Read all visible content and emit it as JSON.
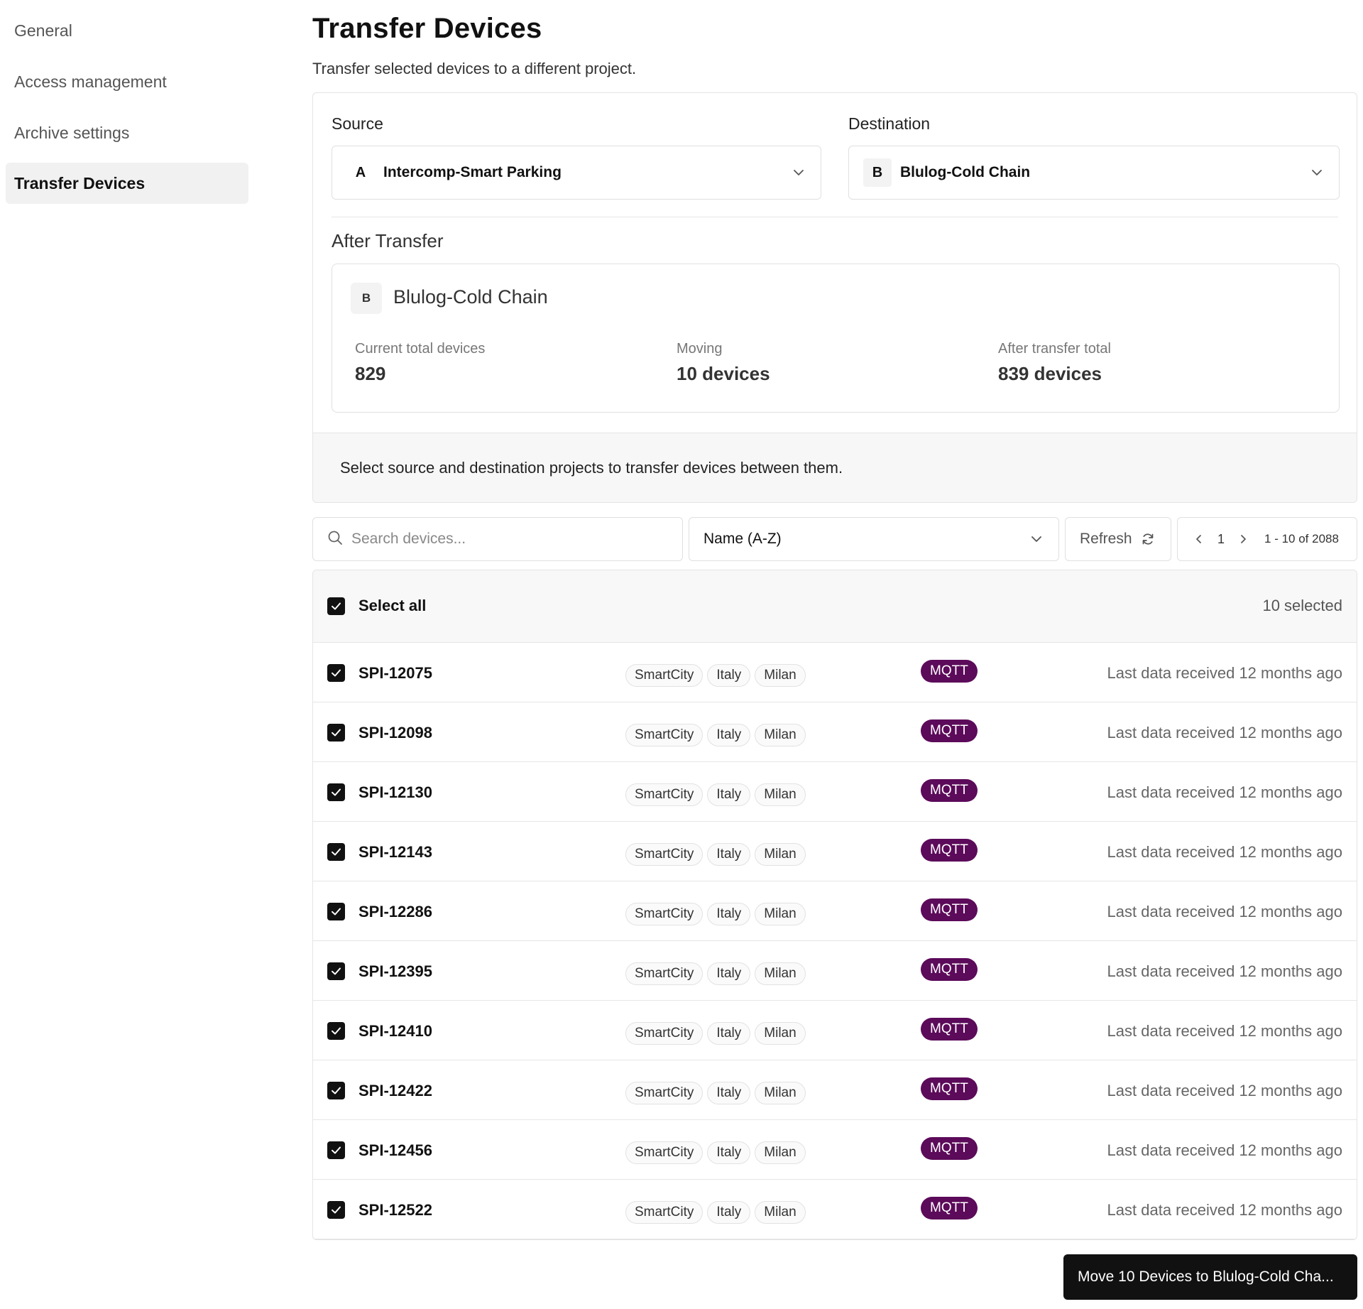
{
  "sidebar": {
    "items": [
      {
        "label": "General"
      },
      {
        "label": "Access management"
      },
      {
        "label": "Archive settings"
      },
      {
        "label": "Transfer Devices"
      }
    ]
  },
  "header": {
    "title": "Transfer Devices",
    "subtitle": "Transfer selected devices to a different project."
  },
  "source": {
    "label": "Source",
    "badge": "A",
    "value": "Intercomp-Smart Parking"
  },
  "destination": {
    "label": "Destination",
    "badge": "B",
    "value": "Blulog-Cold Chain"
  },
  "after_transfer": {
    "title": "After Transfer",
    "badge": "B",
    "project": "Blulog-Cold Chain",
    "current_label": "Current total devices",
    "current_value": "829",
    "moving_label": "Moving",
    "moving_value": "10 devices",
    "after_label": "After transfer total",
    "after_value": "839 devices"
  },
  "notice": "Select source and destination projects to transfer devices between them.",
  "toolbar": {
    "search_placeholder": "Search devices...",
    "sort_value": "Name (A-Z)",
    "refresh_label": "Refresh",
    "page": "1",
    "range": "1 - 10 of 2088"
  },
  "table": {
    "select_all_label": "Select all",
    "selected_count": "10 selected",
    "rows": [
      {
        "name": "SPI-12075",
        "tags": [
          "SmartCity",
          "Italy",
          "Milan"
        ],
        "protocol": "MQTT",
        "last": "Last data received 12 months ago"
      },
      {
        "name": "SPI-12098",
        "tags": [
          "SmartCity",
          "Italy",
          "Milan"
        ],
        "protocol": "MQTT",
        "last": "Last data received 12 months ago"
      },
      {
        "name": "SPI-12130",
        "tags": [
          "SmartCity",
          "Italy",
          "Milan"
        ],
        "protocol": "MQTT",
        "last": "Last data received 12 months ago"
      },
      {
        "name": "SPI-12143",
        "tags": [
          "SmartCity",
          "Italy",
          "Milan"
        ],
        "protocol": "MQTT",
        "last": "Last data received 12 months ago"
      },
      {
        "name": "SPI-12286",
        "tags": [
          "SmartCity",
          "Italy",
          "Milan"
        ],
        "protocol": "MQTT",
        "last": "Last data received 12 months ago"
      },
      {
        "name": "SPI-12395",
        "tags": [
          "SmartCity",
          "Italy",
          "Milan"
        ],
        "protocol": "MQTT",
        "last": "Last data received 12 months ago"
      },
      {
        "name": "SPI-12410",
        "tags": [
          "SmartCity",
          "Italy",
          "Milan"
        ],
        "protocol": "MQTT",
        "last": "Last data received 12 months ago"
      },
      {
        "name": "SPI-12422",
        "tags": [
          "SmartCity",
          "Italy",
          "Milan"
        ],
        "protocol": "MQTT",
        "last": "Last data received 12 months ago"
      },
      {
        "name": "SPI-12456",
        "tags": [
          "SmartCity",
          "Italy",
          "Milan"
        ],
        "protocol": "MQTT",
        "last": "Last data received 12 months ago"
      },
      {
        "name": "SPI-12522",
        "tags": [
          "SmartCity",
          "Italy",
          "Milan"
        ],
        "protocol": "MQTT",
        "last": "Last data received 12 months ago"
      }
    ]
  },
  "move_button": "Move 10 Devices to Blulog-Cold Cha...",
  "colors": {
    "protocol_badge": "#5c0a5a",
    "primary_button": "#111111",
    "active_nav": "#f1f1f1"
  },
  "icons": {
    "search": "search-icon",
    "chevron": "chevron-down-icon",
    "refresh": "refresh-icon",
    "check": "check-icon"
  }
}
